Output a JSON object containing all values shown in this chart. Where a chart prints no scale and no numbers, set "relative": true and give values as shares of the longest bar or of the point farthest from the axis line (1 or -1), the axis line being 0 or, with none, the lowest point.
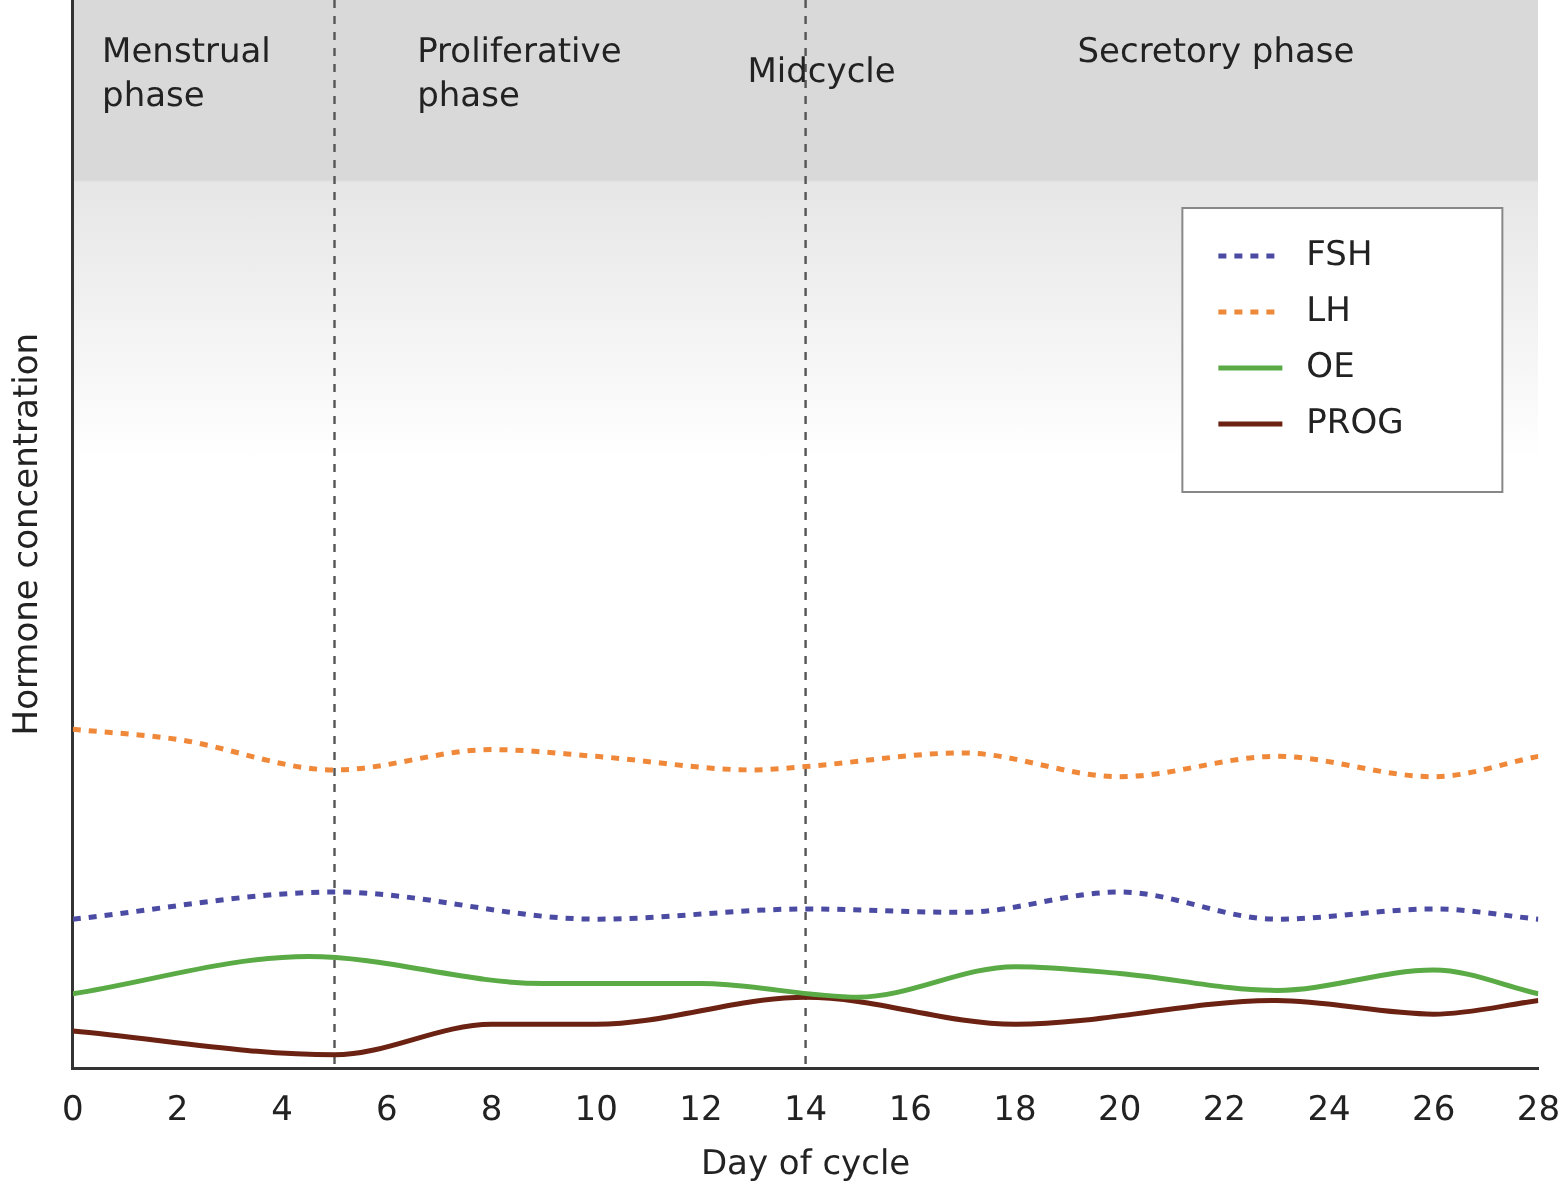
{
  "chart_data": {
    "type": "line",
    "relative": true,
    "xlabel": "Day of cycle",
    "ylabel": "Hormone concentration",
    "xlim": [
      0,
      28
    ],
    "xticks": [
      0,
      2,
      4,
      6,
      8,
      10,
      12,
      14,
      16,
      18,
      20,
      22,
      24,
      26,
      28
    ],
    "legend": "top right",
    "grid": false,
    "marker": "none",
    "series": [
      {
        "name": "FSH",
        "color": "#4b4ba3",
        "line_style": "dashed",
        "x": [
          0,
          5,
          10,
          14,
          17,
          20,
          23,
          26,
          28
        ],
        "values": [
          0.44,
          0.52,
          0.44,
          0.47,
          0.46,
          0.52,
          0.44,
          0.47,
          0.44
        ]
      },
      {
        "name": "LH",
        "color": "#f0883a",
        "line_style": "dashed",
        "x": [
          0,
          2,
          5,
          8,
          10,
          13,
          14,
          17,
          20,
          23,
          26,
          28
        ],
        "values": [
          1.0,
          0.97,
          0.88,
          0.94,
          0.92,
          0.88,
          0.89,
          0.93,
          0.86,
          0.92,
          0.86,
          0.92
        ]
      },
      {
        "name": "OE",
        "color": "#5aaa46",
        "line_style": "solid",
        "x": [
          0,
          4.5,
          9,
          12,
          15,
          18,
          20,
          23,
          26,
          28
        ],
        "values": [
          0.22,
          0.33,
          0.25,
          0.25,
          0.21,
          0.3,
          0.28,
          0.23,
          0.29,
          0.22
        ]
      },
      {
        "name": "PROG",
        "color": "#6b2212",
        "line_style": "solid",
        "x": [
          0,
          5,
          8,
          10,
          14,
          18,
          23,
          26,
          28
        ],
        "values": [
          0.11,
          0.04,
          0.13,
          0.13,
          0.21,
          0.13,
          0.2,
          0.16,
          0.2
        ]
      }
    ],
    "ref_lines": [
      {
        "axis": "x",
        "value": 5,
        "label": null,
        "line_style": "dashed",
        "color": "#555555"
      },
      {
        "axis": "x",
        "value": 14,
        "label": "Midcycle",
        "line_style": "dashed",
        "color": "#555555"
      }
    ],
    "annotations": [
      "Menstrual phase",
      "Proliferative phase",
      "Secretory phase"
    ]
  }
}
